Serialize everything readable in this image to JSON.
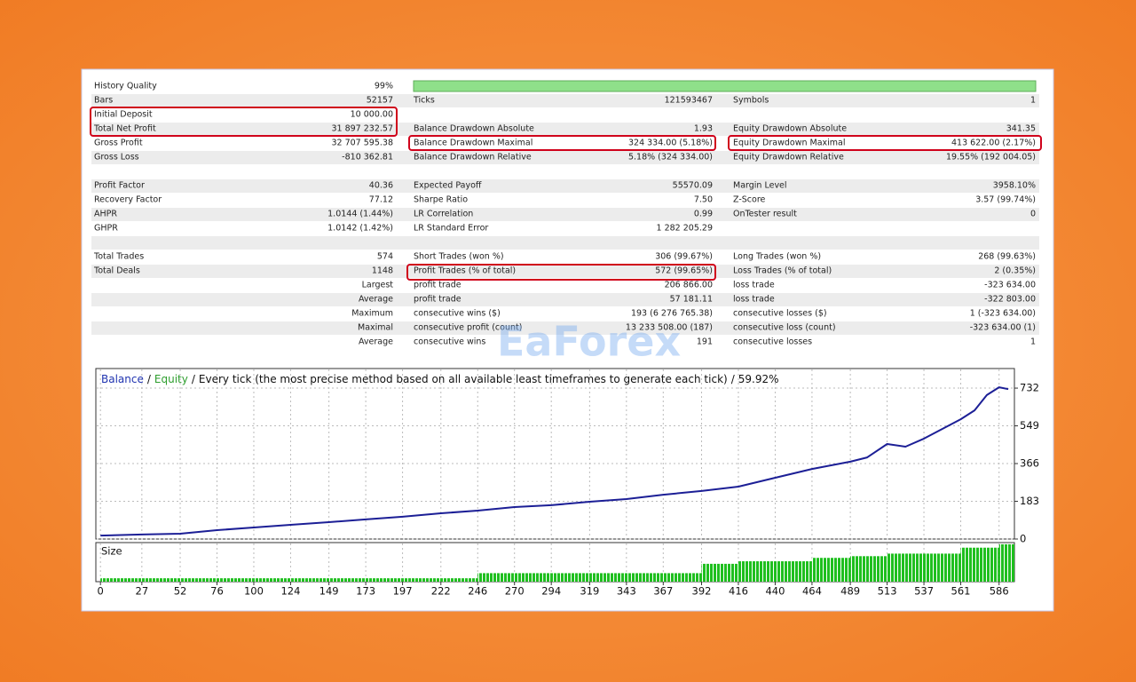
{
  "report": {
    "rows": [
      [
        "History Quality",
        "99%",
        null,
        null,
        null,
        null
      ],
      [
        "Bars",
        "52157",
        "Ticks",
        "121593467",
        "Symbols",
        "1"
      ],
      [
        "Initial Deposit",
        "10 000.00",
        null,
        null,
        null,
        null
      ],
      [
        "Total Net Profit",
        "31 897 232.57",
        "Balance Drawdown Absolute",
        "1.93",
        "Equity Drawdown Absolute",
        "341.35"
      ],
      [
        "Gross Profit",
        "32 707 595.38",
        "Balance Drawdown Maximal",
        "324 334.00 (5.18%)",
        "Equity Drawdown Maximal",
        "413 622.00 (2.17%)"
      ],
      [
        "Gross Loss",
        "-810 362.81",
        "Balance Drawdown Relative",
        "5.18% (324 334.00)",
        "Equity Drawdown Relative",
        "19.55% (192 004.05)"
      ],
      [
        null,
        null,
        null,
        null,
        null,
        null
      ],
      [
        "Profit Factor",
        "40.36",
        "Expected Payoff",
        "55570.09",
        "Margin Level",
        "3958.10%"
      ],
      [
        "Recovery Factor",
        "77.12",
        "Sharpe Ratio",
        "7.50",
        "Z-Score",
        "3.57 (99.74%)"
      ],
      [
        "AHPR",
        "1.0144 (1.44%)",
        "LR Correlation",
        "0.99",
        "OnTester result",
        "0"
      ],
      [
        "GHPR",
        "1.0142 (1.42%)",
        "LR Standard Error",
        "1 282 205.29",
        null,
        null
      ],
      [
        null,
        null,
        null,
        null,
        null,
        null
      ],
      [
        "Total Trades",
        "574",
        "Short Trades (won %)",
        "306 (99.67%)",
        "Long Trades (won %)",
        "268 (99.63%)"
      ],
      [
        "Total Deals",
        "1148",
        "Profit Trades (% of total)",
        "572 (99.65%)",
        "Loss Trades (% of total)",
        "2 (0.35%)"
      ],
      [
        null,
        "Largest",
        "profit trade",
        "206 866.00",
        "loss trade",
        "-323 634.00"
      ],
      [
        null,
        "Average",
        "profit trade",
        "57 181.11",
        "loss trade",
        "-322 803.00"
      ],
      [
        null,
        "Maximum",
        "consecutive wins ($)",
        "193 (6 276 765.38)",
        "consecutive losses ($)",
        "1 (-323 634.00)"
      ],
      [
        null,
        "Maximal",
        "consecutive profit (count)",
        "13 233 508.00 (187)",
        "consecutive loss (count)",
        "-323 634.00 (1)"
      ],
      [
        null,
        "Average",
        "consecutive wins",
        "191",
        "consecutive losses",
        "1"
      ]
    ]
  },
  "watermark": "EaForex",
  "chart_data": {
    "type": "line",
    "equity": {
      "name": "Equity",
      "color": "#2e9e2e"
    },
    "separator": "/",
    "title": "Every tick (the most precise method based on all available least timeframes to generate each tick)",
    "subtitle": "59.92%",
    "x": [
      0,
      27,
      52,
      76,
      100,
      124,
      149,
      173,
      197,
      222,
      246,
      270,
      294,
      319,
      343,
      367,
      392,
      416,
      440,
      464,
      489,
      500,
      513,
      525,
      537,
      549,
      561,
      570,
      578,
      586,
      592
    ],
    "series": [
      {
        "name": "Balance",
        "color": "#1c1f96",
        "values": [
          17,
          22,
          26,
          43,
          56,
          69,
          82,
          95,
          108,
          125,
          138,
          155,
          164,
          181,
          194,
          215,
          233,
          254,
          297,
          340,
          375,
          396,
          461,
          448,
          487,
          534,
          581,
          624,
          698,
          736,
          727
        ]
      }
    ],
    "xlim": [
      -3,
      596
    ],
    "ylim": [
      0,
      827
    ],
    "xticks": [
      0,
      27,
      52,
      76,
      100,
      124,
      149,
      173,
      197,
      222,
      246,
      270,
      294,
      319,
      343,
      367,
      392,
      416,
      440,
      464,
      489,
      513,
      537,
      561,
      586
    ],
    "yticks": [
      0,
      183,
      366,
      549,
      732
    ],
    "grid": true,
    "size": {
      "label": "Size",
      "color": "#1fbf1f",
      "bins": [
        0,
        246,
        392,
        416,
        464,
        489,
        513,
        561,
        586,
        596
      ],
      "values": [
        4,
        10,
        21,
        24,
        28,
        30,
        33,
        40,
        44
      ],
      "ylim": [
        0,
        46
      ]
    }
  }
}
